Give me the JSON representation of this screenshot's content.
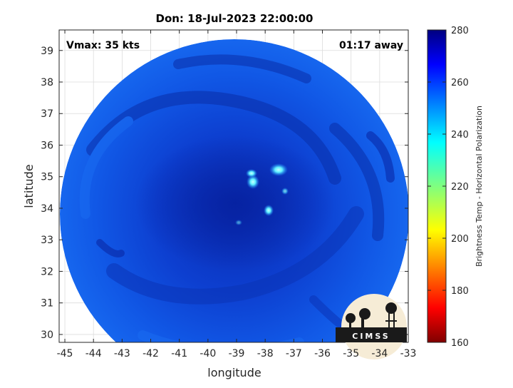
{
  "title": "Don: 18-Jul-2023 22:00:00",
  "vmax_label": "Vmax: 35 kts",
  "time_away_label": "01:17 away",
  "x_axis": {
    "label": "longitude",
    "ticks": [
      "-45",
      "-44",
      "-43",
      "-42",
      "-41",
      "-40",
      "-39",
      "-38",
      "-37",
      "-36",
      "-35",
      "-34",
      "-33"
    ],
    "range": [
      -45.2,
      -33
    ]
  },
  "y_axis": {
    "label": "latitude",
    "ticks": [
      "30",
      "31",
      "32",
      "33",
      "34",
      "35",
      "36",
      "37",
      "38",
      "39"
    ],
    "range": [
      29.75,
      39.65
    ]
  },
  "colorbar": {
    "label": "Brightness Temp - Horizontal Polarization",
    "ticks": [
      "160",
      "180",
      "200",
      "220",
      "240",
      "260",
      "280"
    ],
    "range": [
      160,
      280
    ],
    "colormap": "jet"
  },
  "logo_text": "CIMSS",
  "colors": {
    "background_blue": "#0f4fe0",
    "core_blue": "#0a2fb8",
    "bright_cyan": "#5ff0ff"
  }
}
